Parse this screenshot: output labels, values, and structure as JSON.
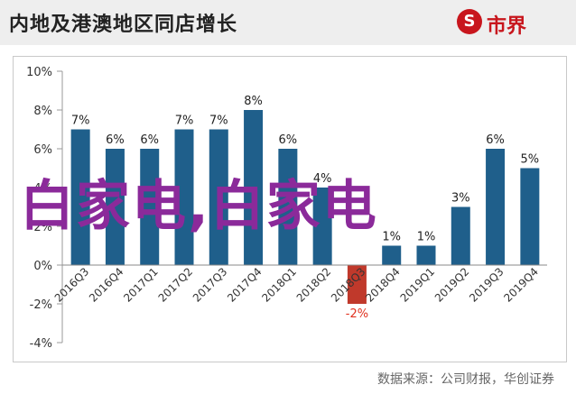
{
  "header": {
    "title": "内地及港澳地区同店增长"
  },
  "logo": {
    "mark": "S",
    "text": "市界"
  },
  "overlay_text": "白家电,白家电",
  "source": "数据来源：公司财报，华创证券",
  "colors": {
    "bar": "#1f5f8b",
    "negative_bar": "#c0392b",
    "negative_label": "#e0301e",
    "overlay": "#8b2a9a",
    "logo": "#c8161d"
  },
  "chart_data": {
    "type": "bar",
    "categories": [
      "2016Q3",
      "2016Q4",
      "2017Q1",
      "2017Q2",
      "2017Q3",
      "2017Q4",
      "2018Q1",
      "2018Q2",
      "2018Q3",
      "2018Q4",
      "2019Q1",
      "2019Q2",
      "2019Q3",
      "2019Q4"
    ],
    "values": [
      7,
      6,
      6,
      7,
      7,
      8,
      6,
      4,
      -2,
      1,
      1,
      3,
      6,
      5
    ],
    "data_labels": [
      "7%",
      "6%",
      "6%",
      "7%",
      "7%",
      "8%",
      "6%",
      "4%",
      "-2%",
      "1%",
      "1%",
      "3%",
      "6%",
      "5%"
    ],
    "yticks": [
      "10%",
      "8%",
      "6%",
      "4%",
      "2%",
      "0%",
      "-2%",
      "-4%"
    ],
    "ylim": [
      -4,
      10
    ],
    "grid": false
  }
}
